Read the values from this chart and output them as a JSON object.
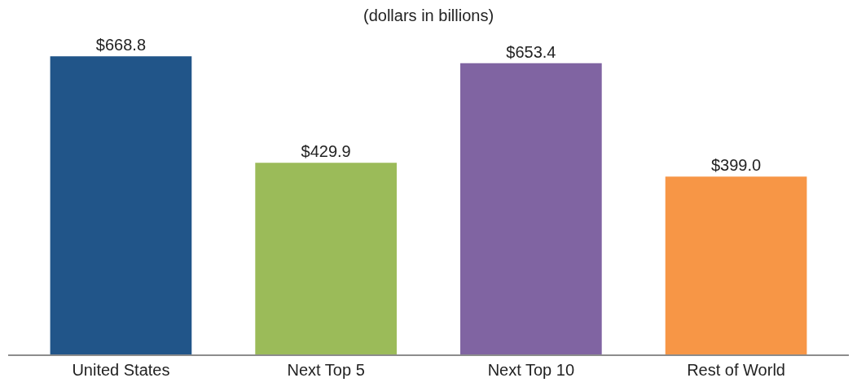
{
  "chart_data": {
    "type": "bar",
    "subtitle": "(dollars in billions)",
    "categories": [
      "United States",
      "Next Top 5",
      "Next Top 10",
      "Rest of World"
    ],
    "values": [
      668.8,
      429.9,
      653.4,
      399.0
    ],
    "value_labels": [
      "$668.8",
      "$429.9",
      "$653.4",
      "$399.0"
    ],
    "colors": [
      "#215589",
      "#9bbb59",
      "#8064a2",
      "#f79646"
    ]
  }
}
